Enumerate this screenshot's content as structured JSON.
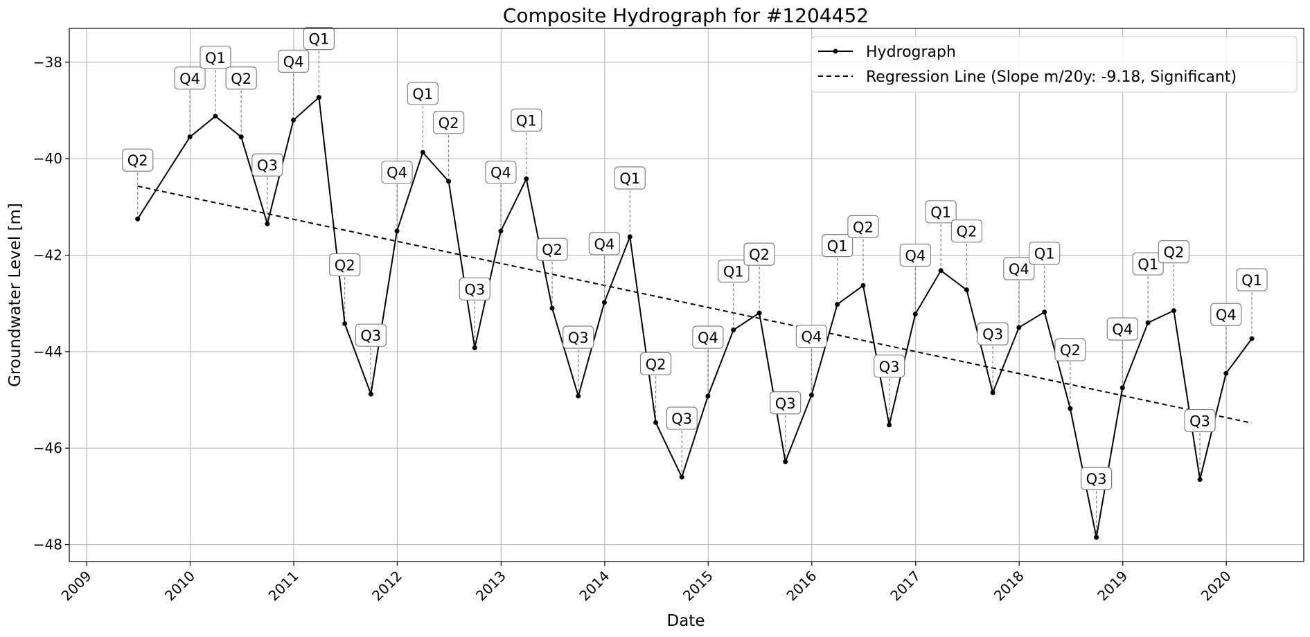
{
  "chart_data": {
    "type": "line",
    "title": "Composite Hydrograph for  #1204452",
    "xlabel": "Date",
    "ylabel": "Groundwater Level [m]",
    "xlim": [
      "2008-11-01",
      "2020-09-30"
    ],
    "ylim": [
      -48.35,
      -37.3
    ],
    "xticks": [
      "2009",
      "2010",
      "2011",
      "2012",
      "2013",
      "2014",
      "2015",
      "2016",
      "2017",
      "2018",
      "2019",
      "2020"
    ],
    "yticks": [
      -38,
      -40,
      -42,
      -44,
      -46,
      -48
    ],
    "ytick_labels": [
      "−38",
      "−40",
      "−42",
      "−44",
      "−46",
      "−48"
    ],
    "grid": true,
    "legend_position": "top-right",
    "series": [
      {
        "name": "Hydrograph",
        "color": "#000000",
        "marker": "circle",
        "points": [
          {
            "x": "2009-06-30",
            "y": -41.25,
            "label": "Q2"
          },
          {
            "x": "2009-12-31",
            "y": -39.55,
            "label": "Q4"
          },
          {
            "x": "2010-03-31",
            "y": -39.12,
            "label": "Q1"
          },
          {
            "x": "2010-06-30",
            "y": -39.55,
            "label": "Q2"
          },
          {
            "x": "2010-09-30",
            "y": -41.35,
            "label": "Q3"
          },
          {
            "x": "2010-12-31",
            "y": -39.2,
            "label": "Q4"
          },
          {
            "x": "2011-03-31",
            "y": -38.73,
            "label": "Q1"
          },
          {
            "x": "2011-06-30",
            "y": -43.42,
            "label": "Q2"
          },
          {
            "x": "2011-09-30",
            "y": -44.88,
            "label": "Q3"
          },
          {
            "x": "2011-12-31",
            "y": -41.5,
            "label": "Q4"
          },
          {
            "x": "2012-03-31",
            "y": -39.87,
            "label": "Q1"
          },
          {
            "x": "2012-06-30",
            "y": -40.47,
            "label": "Q2"
          },
          {
            "x": "2012-09-30",
            "y": -43.92,
            "label": "Q3"
          },
          {
            "x": "2012-12-31",
            "y": -41.5,
            "label": "Q4"
          },
          {
            "x": "2013-03-31",
            "y": -40.42,
            "label": "Q1"
          },
          {
            "x": "2013-06-30",
            "y": -43.1,
            "label": "Q2"
          },
          {
            "x": "2013-09-30",
            "y": -44.92,
            "label": "Q3"
          },
          {
            "x": "2013-12-31",
            "y": -42.98,
            "label": "Q4"
          },
          {
            "x": "2014-03-31",
            "y": -41.62,
            "label": "Q1"
          },
          {
            "x": "2014-06-30",
            "y": -45.47,
            "label": "Q2"
          },
          {
            "x": "2014-09-30",
            "y": -46.6,
            "label": "Q3"
          },
          {
            "x": "2014-12-31",
            "y": -44.92,
            "label": "Q4"
          },
          {
            "x": "2015-03-31",
            "y": -43.55,
            "label": "Q1"
          },
          {
            "x": "2015-06-30",
            "y": -43.2,
            "label": "Q2"
          },
          {
            "x": "2015-09-30",
            "y": -46.28,
            "label": "Q3"
          },
          {
            "x": "2015-12-31",
            "y": -44.9,
            "label": "Q4"
          },
          {
            "x": "2016-03-31",
            "y": -43.02,
            "label": "Q1"
          },
          {
            "x": "2016-06-30",
            "y": -42.63,
            "label": "Q2"
          },
          {
            "x": "2016-09-30",
            "y": -45.52,
            "label": "Q3"
          },
          {
            "x": "2016-12-31",
            "y": -43.22,
            "label": "Q4"
          },
          {
            "x": "2017-03-31",
            "y": -42.32,
            "label": "Q1"
          },
          {
            "x": "2017-06-30",
            "y": -42.72,
            "label": "Q2"
          },
          {
            "x": "2017-09-30",
            "y": -44.85,
            "label": "Q3"
          },
          {
            "x": "2017-12-31",
            "y": -43.5,
            "label": "Q4"
          },
          {
            "x": "2018-03-31",
            "y": -43.18,
            "label": "Q1"
          },
          {
            "x": "2018-06-30",
            "y": -45.18,
            "label": "Q2"
          },
          {
            "x": "2018-09-30",
            "y": -47.85,
            "label": "Q3"
          },
          {
            "x": "2018-12-31",
            "y": -44.75,
            "label": "Q4"
          },
          {
            "x": "2019-03-31",
            "y": -43.4,
            "label": "Q1"
          },
          {
            "x": "2019-06-30",
            "y": -43.15,
            "label": "Q2"
          },
          {
            "x": "2019-09-30",
            "y": -46.65,
            "label": "Q3"
          },
          {
            "x": "2019-12-31",
            "y": -44.45,
            "label": "Q4"
          },
          {
            "x": "2020-03-31",
            "y": -43.73,
            "label": "Q1"
          }
        ]
      },
      {
        "name": "Regression Line (Slope m/20y: -9.18, Significant)",
        "color": "#000000",
        "style": "dashed",
        "points": [
          {
            "x": "2009-06-30",
            "y": -40.57
          },
          {
            "x": "2020-03-31",
            "y": -45.48
          }
        ]
      }
    ]
  }
}
